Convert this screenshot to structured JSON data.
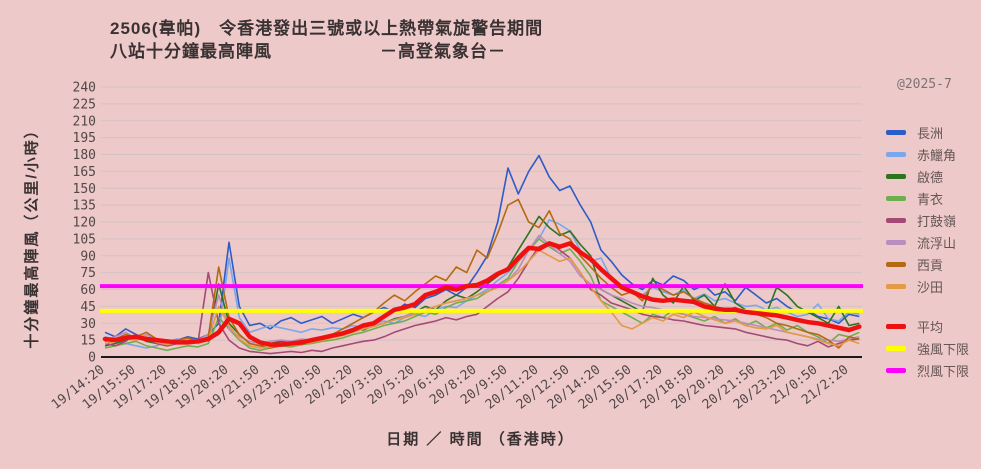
{
  "title": {
    "line1": "2506(韋帕)　令香港發出三號或以上熱帶氣旋警告期間",
    "line2": "八站十分鐘最高陣風　　　　　　－高登氣象台－"
  },
  "watermark": "@2025-7",
  "axes": {
    "y_label": "十分鐘最高陣風（公里/小時）",
    "x_label": "日期 ／ 時間 （香港時）"
  },
  "chart_data": {
    "type": "line",
    "title": "2506(韋帕) 令香港發出三號或以上熱帶氣旋警告期間 八站十分鐘最高陣風 －高登氣象台－",
    "xlabel": "日期 ／ 時間 （香港時）",
    "ylabel": "十分鐘最高陣風（公里/小時）",
    "ylim": [
      0,
      240
    ],
    "ytick_step": 15,
    "grid": "horizontal",
    "legend_position": "right",
    "background": "#eec9c9",
    "grid_color": "#d4c2c5",
    "axis_color": "#1a1a1a",
    "sample_interval_minutes": 30,
    "points_per_tick": 3,
    "x_tick_labels": [
      "19/14:20",
      "19/15:50",
      "19/17:20",
      "19/18:50",
      "19/20:20",
      "19/21:50",
      "19/23:20",
      "20/0:50",
      "20/2:20",
      "20/3:50",
      "20/5:20",
      "20/6:50",
      "20/8:20",
      "20/9:50",
      "20/11:20",
      "20/12:50",
      "20/14:20",
      "20/15:50",
      "20/17:20",
      "20/18:50",
      "20/20:20",
      "20/21:50",
      "20/23:20",
      "21/0:50",
      "21/2:20"
    ],
    "series": [
      {
        "id": "cheung-chau",
        "name": "長洲",
        "color": "#2d5bc8",
        "values": [
          22,
          18,
          25,
          20,
          16,
          14,
          12,
          15,
          18,
          16,
          20,
          30,
          102,
          45,
          28,
          30,
          25,
          32,
          35,
          30,
          33,
          36,
          30,
          34,
          38,
          35,
          40,
          44,
          40,
          47,
          44,
          52,
          55,
          60,
          55,
          62,
          75,
          90,
          120,
          168,
          145,
          165,
          179,
          160,
          148,
          152,
          135,
          120,
          95,
          85,
          73,
          65,
          60,
          68,
          64,
          72,
          68,
          60,
          64,
          55,
          58,
          50,
          62,
          55,
          48,
          52,
          45,
          40,
          42,
          36,
          34,
          30,
          38,
          36
        ]
      },
      {
        "id": "chek-lap-kok",
        "name": "赤鱲角",
        "color": "#79a7ea",
        "values": [
          18,
          15,
          12,
          10,
          8,
          10,
          14,
          16,
          15,
          13,
          16,
          20,
          88,
          35,
          22,
          25,
          28,
          26,
          24,
          22,
          25,
          24,
          26,
          25,
          28,
          26,
          30,
          32,
          30,
          35,
          38,
          36,
          42,
          45,
          44,
          50,
          55,
          60,
          68,
          75,
          85,
          95,
          105,
          122,
          118,
          112,
          95,
          85,
          88,
          70,
          62,
          58,
          55,
          62,
          58,
          55,
          60,
          52,
          56,
          50,
          52,
          48,
          45,
          46,
          42,
          44,
          40,
          36,
          38,
          47,
          34,
          32,
          40,
          38
        ]
      },
      {
        "id": "kai-tak",
        "name": "啟德",
        "color": "#2e7320",
        "values": [
          10,
          12,
          15,
          18,
          14,
          12,
          10,
          12,
          14,
          13,
          15,
          65,
          30,
          20,
          12,
          10,
          12,
          14,
          13,
          15,
          14,
          16,
          18,
          20,
          25,
          24,
          28,
          30,
          34,
          36,
          40,
          45,
          42,
          50,
          55,
          52,
          58,
          65,
          72,
          80,
          95,
          110,
          125,
          115,
          108,
          112,
          100,
          90,
          60,
          55,
          50,
          45,
          40,
          70,
          55,
          48,
          63,
          50,
          55,
          45,
          65,
          48,
          42,
          40,
          38,
          62,
          55,
          45,
          40,
          35,
          30,
          45,
          28,
          30
        ]
      },
      {
        "id": "tsing-yi",
        "name": "青衣",
        "color": "#6fae4e",
        "values": [
          8,
          10,
          12,
          14,
          10,
          8,
          6,
          8,
          10,
          9,
          12,
          35,
          25,
          15,
          8,
          6,
          8,
          10,
          9,
          11,
          12,
          14,
          15,
          17,
          20,
          22,
          25,
          28,
          30,
          32,
          36,
          40,
          38,
          44,
          48,
          50,
          52,
          58,
          64,
          70,
          85,
          95,
          105,
          98,
          92,
          96,
          85,
          72,
          50,
          45,
          40,
          35,
          30,
          38,
          35,
          42,
          38,
          35,
          32,
          36,
          30,
          34,
          28,
          32,
          26,
          30,
          24,
          28,
          22,
          18,
          12,
          20,
          18,
          22
        ]
      },
      {
        "id": "ta-kwu-ling",
        "name": "打鼓嶺",
        "color": "#a34a76",
        "values": [
          12,
          10,
          14,
          20,
          16,
          12,
          10,
          12,
          15,
          13,
          75,
          30,
          15,
          8,
          5,
          4,
          3,
          4,
          5,
          4,
          6,
          5,
          8,
          10,
          12,
          14,
          15,
          18,
          22,
          25,
          28,
          30,
          32,
          35,
          33,
          36,
          38,
          45,
          52,
          58,
          70,
          85,
          98,
          102,
          95,
          88,
          75,
          60,
          55,
          48,
          45,
          42,
          38,
          36,
          35,
          33,
          32,
          30,
          28,
          27,
          26,
          25,
          22,
          20,
          18,
          16,
          15,
          12,
          10,
          14,
          9,
          12,
          15,
          16
        ]
      },
      {
        "id": "lau-fau-shan",
        "name": "流浮山",
        "color": "#bb8cbd",
        "values": [
          15,
          18,
          22,
          16,
          20,
          15,
          12,
          14,
          16,
          15,
          20,
          55,
          25,
          18,
          14,
          12,
          14,
          15,
          14,
          16,
          15,
          17,
          18,
          20,
          22,
          25,
          28,
          30,
          33,
          36,
          40,
          42,
          45,
          48,
          50,
          52,
          55,
          58,
          62,
          68,
          78,
          95,
          108,
          100,
          92,
          85,
          72,
          65,
          60,
          55,
          52,
          48,
          45,
          44,
          42,
          40,
          38,
          36,
          35,
          34,
          33,
          32,
          30,
          28,
          26,
          24,
          22,
          20,
          18,
          16,
          15,
          14,
          16,
          18
        ]
      },
      {
        "id": "sai-kung",
        "name": "西貢",
        "color": "#b36a12",
        "values": [
          14,
          16,
          20,
          18,
          22,
          16,
          14,
          15,
          17,
          14,
          18,
          80,
          35,
          20,
          12,
          10,
          8,
          10,
          12,
          11,
          14,
          16,
          20,
          25,
          30,
          35,
          40,
          48,
          55,
          50,
          58,
          65,
          72,
          68,
          80,
          75,
          95,
          88,
          110,
          135,
          140,
          120,
          115,
          130,
          110,
          105,
          90,
          80,
          70,
          62,
          55,
          58,
          50,
          65,
          60,
          55,
          58,
          52,
          48,
          45,
          42,
          44,
          40,
          38,
          35,
          30,
          28,
          25,
          22,
          20,
          15,
          8,
          18,
          16
        ]
      },
      {
        "id": "sha-tin",
        "name": "沙田",
        "color": "#e29a45",
        "values": [
          12,
          14,
          16,
          15,
          18,
          13,
          11,
          13,
          15,
          12,
          15,
          45,
          28,
          16,
          10,
          8,
          9,
          11,
          10,
          12,
          13,
          15,
          17,
          19,
          22,
          25,
          27,
          30,
          33,
          35,
          38,
          42,
          45,
          48,
          50,
          52,
          55,
          58,
          62,
          68,
          75,
          85,
          95,
          90,
          85,
          88,
          75,
          62,
          50,
          40,
          28,
          25,
          30,
          35,
          32,
          38,
          35,
          40,
          36,
          33,
          30,
          32,
          28,
          26,
          25,
          28,
          22,
          20,
          18,
          15,
          12,
          10,
          15,
          12
        ]
      }
    ],
    "average": {
      "id": "average",
      "name": "平均",
      "color": "#ef1111",
      "values": [
        16,
        15,
        17,
        18,
        16,
        15,
        14,
        13,
        13,
        14,
        16,
        22,
        34,
        30,
        18,
        13,
        11,
        11,
        12,
        13,
        15,
        17,
        19,
        21,
        24,
        28,
        30,
        36,
        42,
        44,
        47,
        55,
        58,
        62,
        60,
        63,
        64,
        68,
        74,
        78,
        88,
        97,
        96,
        101,
        98,
        101,
        93,
        87,
        78,
        70,
        62,
        58,
        54,
        51,
        50,
        51,
        50,
        49,
        45,
        43,
        42,
        42,
        40,
        39,
        38,
        37,
        35,
        33,
        31,
        30,
        28,
        26,
        24,
        27
      ]
    },
    "thresholds": [
      {
        "id": "strong-wind-limit",
        "name": "強風下限",
        "value": 41,
        "color": "#ffff00"
      },
      {
        "id": "gale-limit",
        "name": "烈風下限",
        "value": 63,
        "color": "#ff00ff"
      }
    ]
  }
}
